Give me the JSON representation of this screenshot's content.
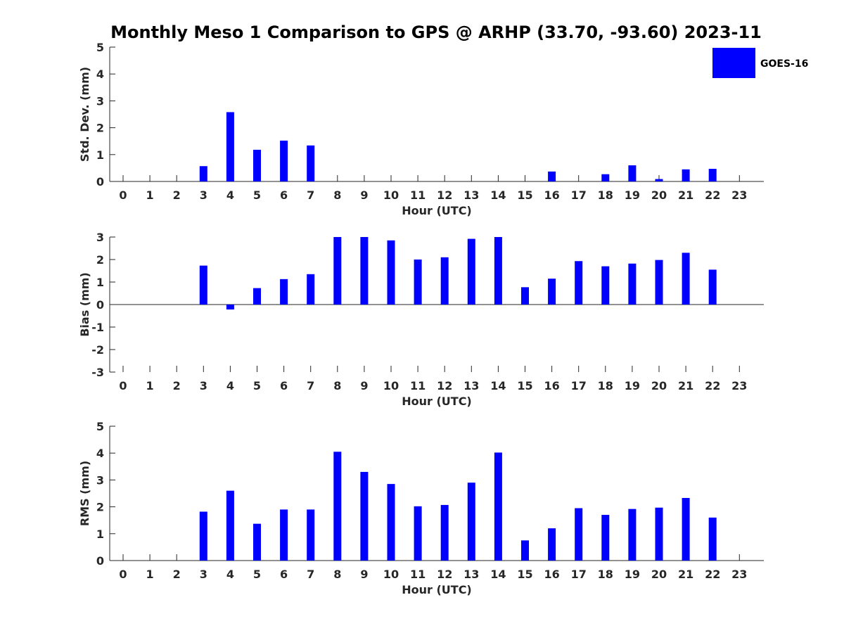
{
  "title": "Monthly Meso 1 Comparison to GPS @ ARHP (33.70, -93.60) 2023-11",
  "legend": {
    "label": "GOES-16",
    "color": "#0000ff"
  },
  "chart_data": [
    {
      "type": "bar",
      "xlabel": "Hour (UTC)",
      "ylabel": "Std. Dev. (mm)",
      "categories": [
        "0",
        "1",
        "2",
        "3",
        "4",
        "5",
        "6",
        "7",
        "8",
        "9",
        "10",
        "11",
        "12",
        "13",
        "14",
        "15",
        "16",
        "17",
        "18",
        "19",
        "20",
        "21",
        "22",
        "23"
      ],
      "ylim": [
        0,
        5
      ],
      "yticks": [
        "0",
        "1",
        "2",
        "3",
        "4",
        "5"
      ],
      "series": [
        {
          "name": "GOES-16",
          "color": "#0000ff",
          "values": [
            null,
            null,
            null,
            0.57,
            2.58,
            1.18,
            1.52,
            1.34,
            null,
            null,
            null,
            null,
            null,
            null,
            null,
            null,
            0.37,
            null,
            0.27,
            0.6,
            0.09,
            0.45,
            0.47,
            null
          ]
        }
      ]
    },
    {
      "type": "bar",
      "xlabel": "Hour (UTC)",
      "ylabel": "Bias (mm)",
      "categories": [
        "0",
        "1",
        "2",
        "3",
        "4",
        "5",
        "6",
        "7",
        "8",
        "9",
        "10",
        "11",
        "12",
        "13",
        "14",
        "15",
        "16",
        "17",
        "18",
        "19",
        "20",
        "21",
        "22",
        "23"
      ],
      "ylim": [
        -3,
        3
      ],
      "yticks": [
        "-3",
        "-2",
        "-1",
        "0",
        "1",
        "2",
        "3"
      ],
      "series": [
        {
          "name": "GOES-16",
          "color": "#0000ff",
          "values": [
            null,
            null,
            null,
            1.73,
            -0.22,
            0.73,
            1.13,
            1.35,
            3.0,
            3.0,
            2.85,
            2.0,
            2.1,
            2.92,
            3.0,
            0.77,
            1.15,
            1.93,
            1.7,
            1.82,
            1.98,
            2.3,
            1.55,
            null
          ]
        }
      ]
    },
    {
      "type": "bar",
      "xlabel": "Hour (UTC)",
      "ylabel": "RMS (mm)",
      "categories": [
        "0",
        "1",
        "2",
        "3",
        "4",
        "5",
        "6",
        "7",
        "8",
        "9",
        "10",
        "11",
        "12",
        "13",
        "14",
        "15",
        "16",
        "17",
        "18",
        "19",
        "20",
        "21",
        "22",
        "23"
      ],
      "ylim": [
        0,
        5
      ],
      "yticks": [
        "0",
        "1",
        "2",
        "3",
        "4",
        "5"
      ],
      "series": [
        {
          "name": "GOES-16",
          "color": "#0000ff",
          "values": [
            null,
            null,
            null,
            1.82,
            2.6,
            1.37,
            1.9,
            1.9,
            4.05,
            3.3,
            2.85,
            2.02,
            2.07,
            2.9,
            4.02,
            0.75,
            1.2,
            1.95,
            1.7,
            1.92,
            1.97,
            2.33,
            1.6,
            null
          ]
        }
      ]
    }
  ]
}
